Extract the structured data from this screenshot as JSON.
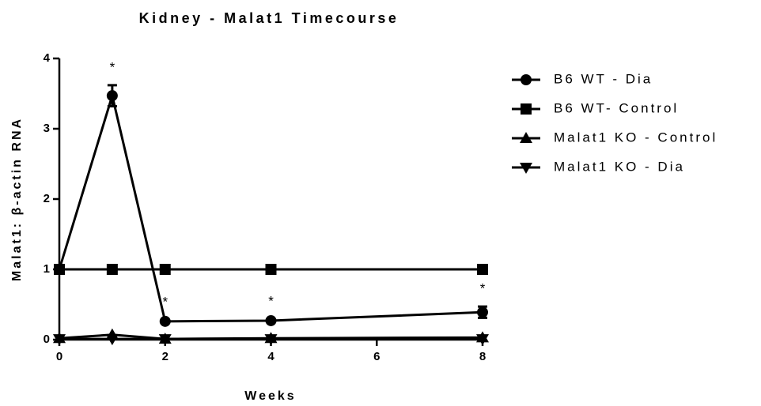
{
  "chart_data": {
    "type": "line",
    "title": "Kidney - Malat1 Timecourse",
    "xlabel": "Weeks",
    "ylabel": "Malat1: β-actin RNA",
    "x": [
      0,
      1,
      2,
      4,
      8
    ],
    "xlim": [
      0,
      8
    ],
    "xticks": [
      0,
      2,
      4,
      6,
      8
    ],
    "ylim": [
      0,
      4
    ],
    "yticks": [
      0,
      1,
      2,
      3,
      4
    ],
    "legend": "right",
    "series": [
      {
        "name": "B6 WT - Dia",
        "color": "#000000",
        "marker": "circle",
        "values": [
          1,
          3.47,
          0.26,
          0.27,
          0.39
        ],
        "errors": [
          0,
          0.15,
          0.02,
          0.02,
          0.08
        ]
      },
      {
        "name": "B6 WT- Control",
        "color": "#000000",
        "marker": "square",
        "values": [
          1,
          1,
          1,
          1,
          1
        ]
      },
      {
        "name": "Malat1 KO - Control",
        "color": "#000000",
        "marker": "triangle",
        "values": [
          0.02,
          0.07,
          0.01,
          0.02,
          0.03
        ]
      },
      {
        "name": "Malat1 KO - Dia",
        "color": "#000000",
        "marker": "triangle-down",
        "values": [
          0.01,
          0.01,
          0.01,
          0.01,
          0.01
        ]
      }
    ],
    "annotations": [
      {
        "x": 1,
        "text": "*"
      },
      {
        "x": 2,
        "text": "*"
      },
      {
        "x": 4,
        "text": "*"
      },
      {
        "x": 8,
        "text": "*"
      }
    ]
  }
}
